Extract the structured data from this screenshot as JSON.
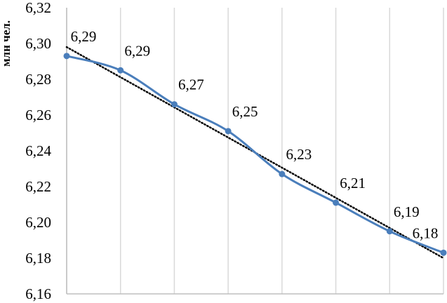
{
  "chart_data": {
    "type": "line",
    "title": "",
    "xlabel": "",
    "ylabel": "млн чел.",
    "ylim": [
      6.16,
      6.32
    ],
    "yticks": [
      "6,16",
      "6,18",
      "6,20",
      "6,22",
      "6,24",
      "6,26",
      "6,28",
      "6,30",
      "6,32"
    ],
    "grid": {
      "vertical": true,
      "horizontal": false
    },
    "legend": "none",
    "series": [
      {
        "values": [
          6.293,
          6.285,
          6.266,
          6.251,
          6.227,
          6.211,
          6.195,
          6.183
        ],
        "labels": [
          "6,29",
          "6,29",
          "6,27",
          "6,25",
          "6,23",
          "6,21",
          "6,19",
          "6,18"
        ],
        "color": "#4a7ebb",
        "marker": "circle"
      }
    ],
    "trendline": {
      "type": "linear",
      "start": 6.298,
      "end": 6.18,
      "color": "#000000",
      "style": "dotted"
    },
    "colors": {
      "grid": "#d9d9d9",
      "axis": "#bfbfbf"
    }
  }
}
